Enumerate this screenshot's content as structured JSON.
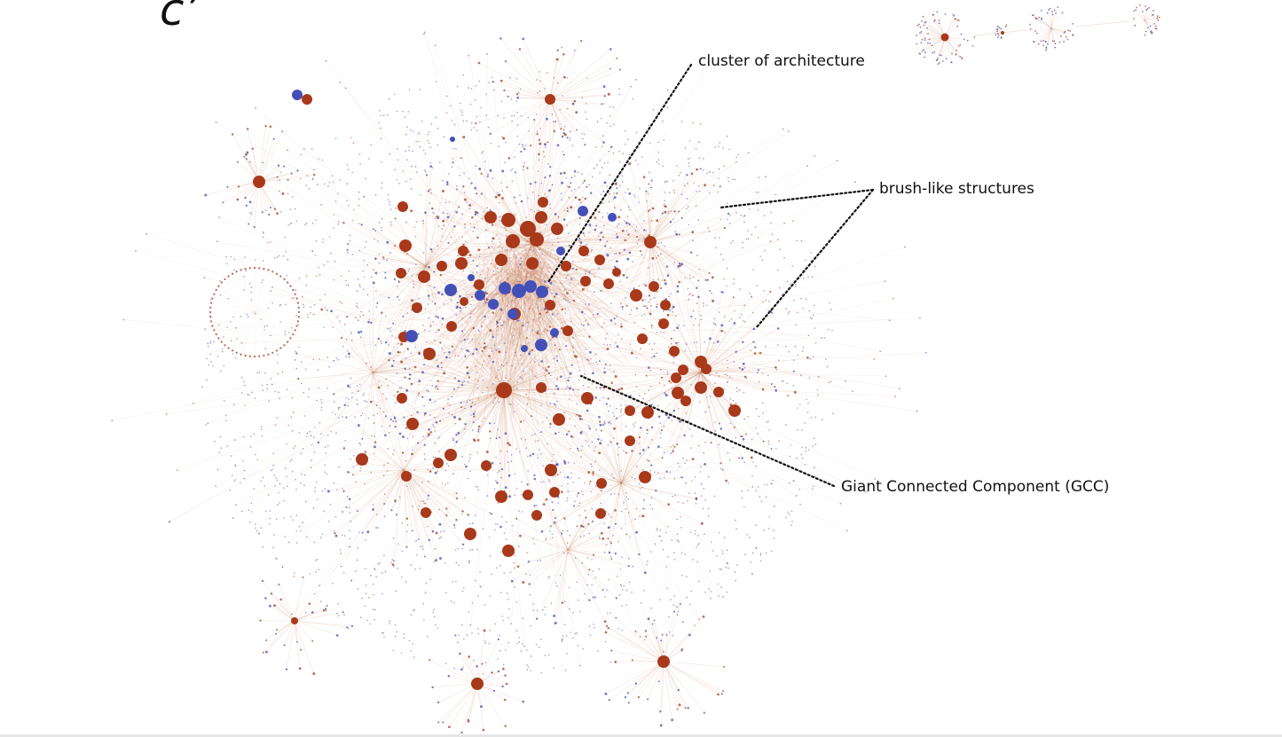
{
  "figure": {
    "panel_letter": "c’",
    "annotations": {
      "architecture": "cluster of architecture",
      "brush": "brush-like structures",
      "gcc": "Giant Connected Component (GCC)"
    }
  },
  "colors": {
    "node_primary": "#a8391a",
    "node_secondary": "#4350b8",
    "edge": "#c9805f",
    "leader_line": "#111111",
    "background": "#ffffff"
  }
}
